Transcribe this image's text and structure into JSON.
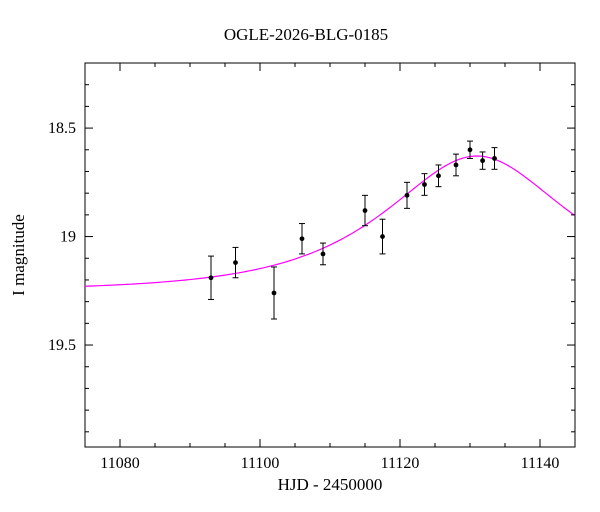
{
  "chart_data": {
    "type": "scatter",
    "title": "OGLE-2026-BLG-0185",
    "xlabel": "HJD - 2450000",
    "ylabel": "I magnitude",
    "y_axis_inverted": true,
    "xlim": [
      11075,
      11145
    ],
    "ylim": [
      18.2,
      19.97
    ],
    "grid": false,
    "x_major_ticks": [
      {
        "value": 11080,
        "label": "11080"
      },
      {
        "value": 11100,
        "label": "11100"
      },
      {
        "value": 11120,
        "label": "11120"
      },
      {
        "value": 11140,
        "label": "11140"
      }
    ],
    "x_minor_ticks": [
      11085,
      11090,
      11095,
      11105,
      11110,
      11115,
      11125,
      11130,
      11135
    ],
    "y_major_ticks": [
      {
        "value": 18.5,
        "label": "18.5"
      },
      {
        "value": 19.0,
        "label": "19"
      },
      {
        "value": 19.5,
        "label": "19.5"
      }
    ],
    "y_minor_ticks": [
      18.3,
      18.4,
      18.6,
      18.7,
      18.8,
      18.9,
      19.1,
      19.2,
      19.3,
      19.4,
      19.6,
      19.7,
      19.8,
      19.9
    ],
    "points": [
      {
        "x": 11093.0,
        "y": 19.19,
        "err": 0.1
      },
      {
        "x": 11096.5,
        "y": 19.12,
        "err": 0.07
      },
      {
        "x": 11102.0,
        "y": 19.26,
        "err": 0.12
      },
      {
        "x": 11106.0,
        "y": 19.01,
        "err": 0.07
      },
      {
        "x": 11109.0,
        "y": 19.08,
        "err": 0.05
      },
      {
        "x": 11115.0,
        "y": 18.88,
        "err": 0.07
      },
      {
        "x": 11117.5,
        "y": 19.0,
        "err": 0.08
      },
      {
        "x": 11121.0,
        "y": 18.81,
        "err": 0.06
      },
      {
        "x": 11123.5,
        "y": 18.76,
        "err": 0.05
      },
      {
        "x": 11125.5,
        "y": 18.72,
        "err": 0.05
      },
      {
        "x": 11128.0,
        "y": 18.67,
        "err": 0.05
      },
      {
        "x": 11130.0,
        "y": 18.6,
        "err": 0.04
      },
      {
        "x": 11131.8,
        "y": 18.65,
        "err": 0.04
      },
      {
        "x": 11133.5,
        "y": 18.64,
        "err": 0.05
      }
    ],
    "model": {
      "name": "paczynski-microlensing-fit",
      "t0": 11131,
      "tE": 20,
      "u0": 0.65,
      "I0": 19.25,
      "color": "#ff00ff"
    }
  }
}
